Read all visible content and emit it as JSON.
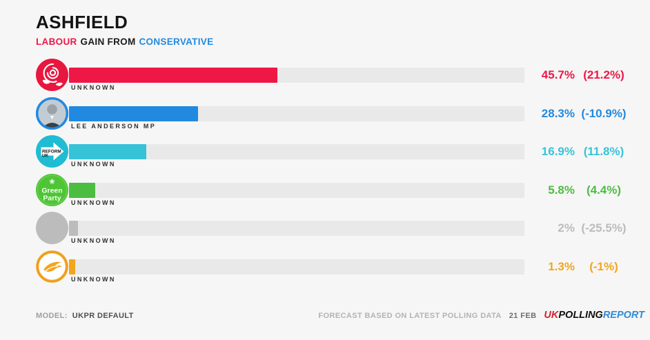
{
  "header": {
    "title": "ASHFIELD",
    "gaining_party": "LABOUR",
    "gain_text": "GAIN FROM",
    "losing_party": "CONSERVATIVE"
  },
  "colors": {
    "labour": "#ee1746",
    "conservative": "#2289e0",
    "reform": "#36c3d8",
    "green": "#4cbd41",
    "unknown": "#bcbcbc",
    "libdem": "#f3a51d",
    "background": "#f6f6f6",
    "track": "#e9e9e9",
    "logo_red": "#d8232a",
    "logo_black": "#101010",
    "logo_blue": "#2e8bd8"
  },
  "chart_data": {
    "type": "bar",
    "orientation": "horizontal",
    "title": "ASHFIELD",
    "subtitle": "LABOUR GAIN FROM CONSERVATIVE",
    "xlim": [
      0,
      100
    ],
    "unit": "%",
    "grid": false,
    "legend": "none",
    "categories": [
      "Labour",
      "Conservative",
      "Reform UK",
      "Green Party",
      "Unknown",
      "Liberal Democrats"
    ],
    "rows": [
      {
        "party": "Labour",
        "candidate": "UNKNOWN",
        "value": 45.7,
        "value_label": "45.7%",
        "change": 21.2,
        "change_label": "(21.2%)",
        "color": "#ee1746",
        "icon": "labour-rose-icon"
      },
      {
        "party": "Conservative",
        "candidate": "LEE ANDERSON MP",
        "value": 28.3,
        "value_label": "28.3%",
        "change": -10.9,
        "change_label": "(-10.9%)",
        "color": "#2289e0",
        "icon": "conservative-candidate-avatar"
      },
      {
        "party": "Reform UK",
        "candidate": "UNKNOWN",
        "value": 16.9,
        "value_label": "16.9%",
        "change": 11.8,
        "change_label": "(11.8%)",
        "color": "#36c3d8",
        "icon": "reform-uk-icon"
      },
      {
        "party": "Green Party",
        "candidate": "UNKNOWN",
        "value": 5.8,
        "value_label": "5.8%",
        "change": 4.4,
        "change_label": "(4.4%)",
        "color": "#4cbd41",
        "icon": "green-party-icon"
      },
      {
        "party": "Unknown",
        "candidate": "UNKNOWN",
        "value": 2,
        "value_label": "2%",
        "change": -25.5,
        "change_label": "(-25.5%)",
        "color": "#bcbcbc",
        "icon": "unknown-party-icon"
      },
      {
        "party": "Liberal Democrats",
        "candidate": "UNKNOWN",
        "value": 1.3,
        "value_label": "1.3%",
        "change": -1,
        "change_label": "(-1%)",
        "color": "#f3a51d",
        "icon": "lib-dem-bird-icon"
      }
    ]
  },
  "footer": {
    "model_label": "MODEL:",
    "model_value": "UKPR DEFAULT",
    "forecast_note": "FORECAST BASED ON LATEST POLLING DATA",
    "date": "21 FEB",
    "logo": {
      "part1": "UK",
      "part2": "POLLING",
      "part3": "REPORT"
    }
  }
}
